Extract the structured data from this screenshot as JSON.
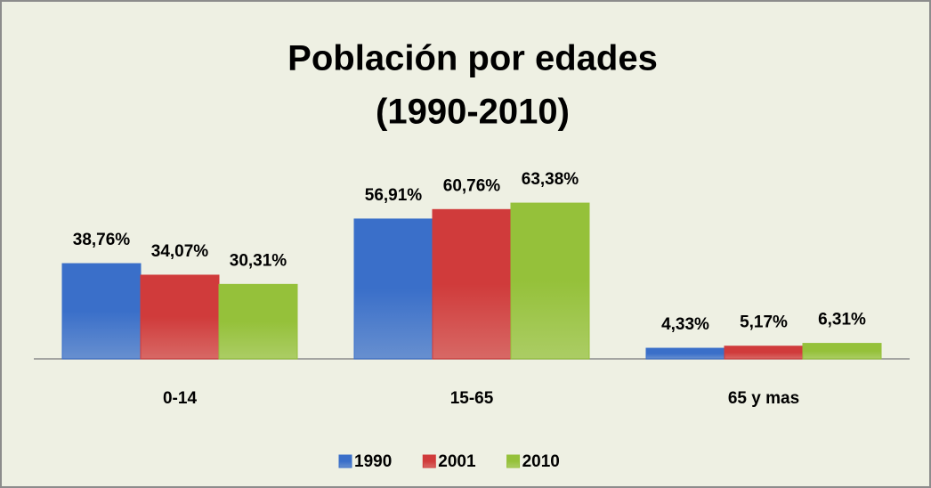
{
  "chart_data": {
    "type": "bar",
    "title": "Población por edades",
    "subtitle": "(1990-2010)",
    "categories": [
      "0-14",
      "15-65",
      "65 y mas"
    ],
    "series": [
      {
        "name": "1990",
        "color": "#3a6fc9",
        "values": [
          38.76,
          56.91,
          4.33
        ],
        "value_labels": [
          "38,76%",
          "56,91%",
          "4,33%"
        ]
      },
      {
        "name": "2001",
        "color": "#d03b3b",
        "values": [
          34.07,
          60.76,
          5.17
        ],
        "value_labels": [
          "34,07%",
          "60,76%",
          "5,17%"
        ]
      },
      {
        "name": "2010",
        "color": "#95c13a",
        "values": [
          30.31,
          63.38,
          6.31
        ],
        "value_labels": [
          "30,31%",
          "63,38%",
          "6,31%"
        ]
      }
    ],
    "legend": "bottom"
  }
}
